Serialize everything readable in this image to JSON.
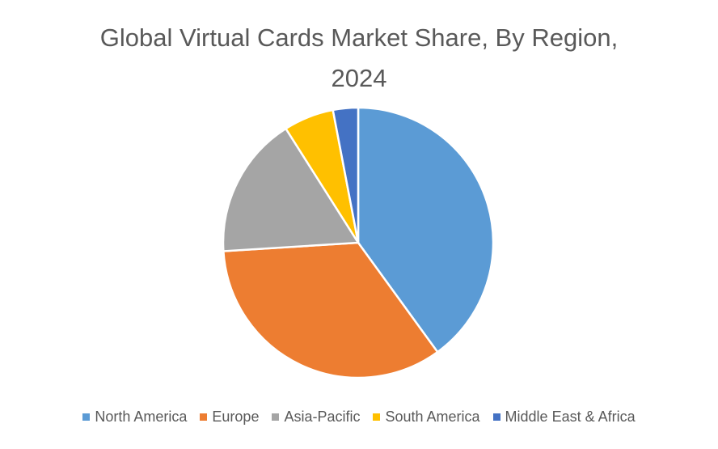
{
  "chart_data": {
    "type": "pie",
    "title": "Global Virtual Cards Market Share, By Region, 2024",
    "categories": [
      "North America",
      "Europe",
      "Asia-Pacific",
      "South America",
      "Middle East & Africa"
    ],
    "values": [
      40,
      34,
      17,
      6,
      3
    ],
    "colors": [
      "#5b9bd5",
      "#ed7d31",
      "#a5a5a5",
      "#ffc000",
      "#4472c4"
    ],
    "legend": "bottom"
  }
}
